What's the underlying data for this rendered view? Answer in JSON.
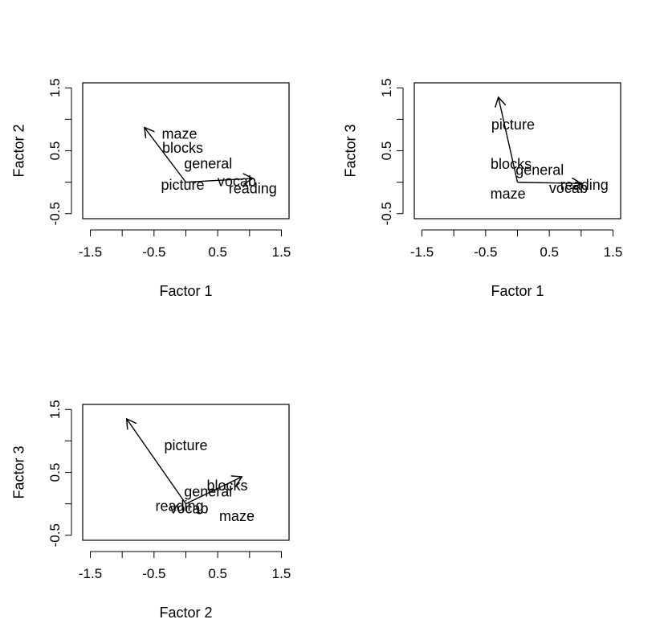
{
  "chart_data": [
    {
      "type": "biplot",
      "xlabel": "Factor 1",
      "ylabel": "Factor 2",
      "xlim": [
        -1.5,
        1.5
      ],
      "ylim": [
        -0.5,
        1.5
      ],
      "xticks": [
        "-1.5",
        "-0.5",
        "0.5",
        "1.5"
      ],
      "yticks": [
        "-0.5",
        "0.5",
        "1.5"
      ],
      "labels": [
        {
          "text": "maze",
          "x": -0.1,
          "y": 0.77
        },
        {
          "text": "blocks",
          "x": -0.05,
          "y": 0.55
        },
        {
          "text": "general",
          "x": 0.35,
          "y": 0.3
        },
        {
          "text": "picture",
          "x": -0.05,
          "y": -0.04
        },
        {
          "text": "vocab",
          "x": 0.8,
          "y": 0.02
        },
        {
          "text": "reading",
          "x": 1.05,
          "y": -0.1
        }
      ],
      "arrows": [
        {
          "x": -0.65,
          "y": 0.87
        },
        {
          "x": 1.05,
          "y": 0.06
        }
      ]
    },
    {
      "type": "biplot",
      "xlabel": "Factor 1",
      "ylabel": "Factor 3",
      "xlim": [
        -1.5,
        1.5
      ],
      "ylim": [
        -0.5,
        1.5
      ],
      "xticks": [
        "-1.5",
        "-0.5",
        "0.5",
        "1.5"
      ],
      "yticks": [
        "-0.5",
        "0.5",
        "1.5"
      ],
      "labels": [
        {
          "text": "picture",
          "x": -0.07,
          "y": 0.92
        },
        {
          "text": "blocks",
          "x": -0.1,
          "y": 0.29
        },
        {
          "text": "general",
          "x": 0.35,
          "y": 0.2
        },
        {
          "text": "reading",
          "x": 1.05,
          "y": -0.04
        },
        {
          "text": "vocab",
          "x": 0.8,
          "y": -0.09
        },
        {
          "text": "maze",
          "x": -0.15,
          "y": -0.18
        }
      ],
      "arrows": [
        {
          "x": -0.3,
          "y": 1.35
        },
        {
          "x": 1.0,
          "y": -0.02
        }
      ]
    },
    {
      "type": "biplot",
      "xlabel": "Factor 2",
      "ylabel": "Factor 3",
      "xlim": [
        -1.5,
        1.5
      ],
      "ylim": [
        -0.5,
        1.5
      ],
      "xticks": [
        "-1.5",
        "-0.5",
        "0.5",
        "1.5"
      ],
      "yticks": [
        "-0.5",
        "0.5",
        "1.5"
      ],
      "labels": [
        {
          "text": "picture",
          "x": 0.0,
          "y": 0.93
        },
        {
          "text": "blocks",
          "x": 0.65,
          "y": 0.29
        },
        {
          "text": "general",
          "x": 0.35,
          "y": 0.2
        },
        {
          "text": "reading",
          "x": -0.1,
          "y": -0.03
        },
        {
          "text": "vocab",
          "x": 0.05,
          "y": -0.07
        },
        {
          "text": "maze",
          "x": 0.8,
          "y": -0.19
        }
      ],
      "arrows": [
        {
          "x": -0.93,
          "y": 1.35
        },
        {
          "x": 0.88,
          "y": 0.43
        }
      ]
    }
  ]
}
